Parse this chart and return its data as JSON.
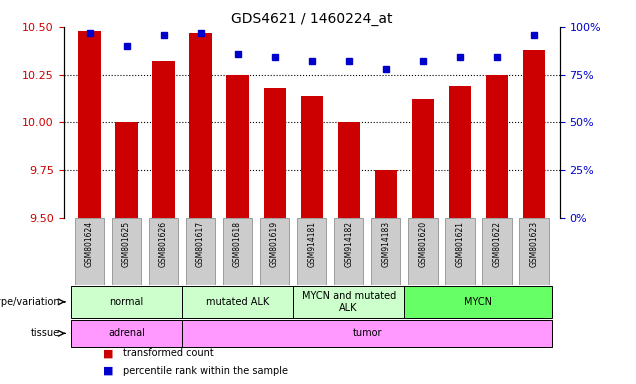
{
  "title": "GDS4621 / 1460224_at",
  "samples": [
    "GSM801624",
    "GSM801625",
    "GSM801626",
    "GSM801617",
    "GSM801618",
    "GSM801619",
    "GSM914181",
    "GSM914182",
    "GSM914183",
    "GSM801620",
    "GSM801621",
    "GSM801622",
    "GSM801623"
  ],
  "red_values": [
    10.48,
    10.0,
    10.32,
    10.47,
    10.25,
    10.18,
    10.14,
    10.0,
    9.75,
    10.12,
    10.19,
    10.25,
    10.38
  ],
  "blue_values": [
    97,
    90,
    96,
    97,
    86,
    84,
    82,
    82,
    78,
    82,
    84,
    84,
    96
  ],
  "ylim_left": [
    9.5,
    10.5
  ],
  "ylim_right": [
    0,
    100
  ],
  "yticks_left": [
    9.5,
    9.75,
    10.0,
    10.25,
    10.5
  ],
  "yticks_right": [
    0,
    25,
    50,
    75,
    100
  ],
  "red_color": "#cc0000",
  "blue_color": "#0000cc",
  "bar_width": 0.6,
  "genotype_groups": [
    {
      "label": "normal",
      "start": 0,
      "end": 3,
      "color": "#ccffcc"
    },
    {
      "label": "mutated ALK",
      "start": 3,
      "end": 6,
      "color": "#ccffcc"
    },
    {
      "label": "MYCN and mutated\nALK",
      "start": 6,
      "end": 9,
      "color": "#ccffcc"
    },
    {
      "label": "MYCN",
      "start": 9,
      "end": 13,
      "color": "#66ff66"
    }
  ],
  "tissue_groups": [
    {
      "label": "adrenal",
      "start": 0,
      "end": 3,
      "color": "#ff99ff"
    },
    {
      "label": "tumor",
      "start": 3,
      "end": 13,
      "color": "#ff99ff"
    }
  ],
  "genotype_label": "genotype/variation",
  "tissue_label": "tissue",
  "legend_red": "transformed count",
  "legend_blue": "percentile rank within the sample",
  "bg_color": "#ffffff",
  "tick_bg_color": "#cccccc"
}
